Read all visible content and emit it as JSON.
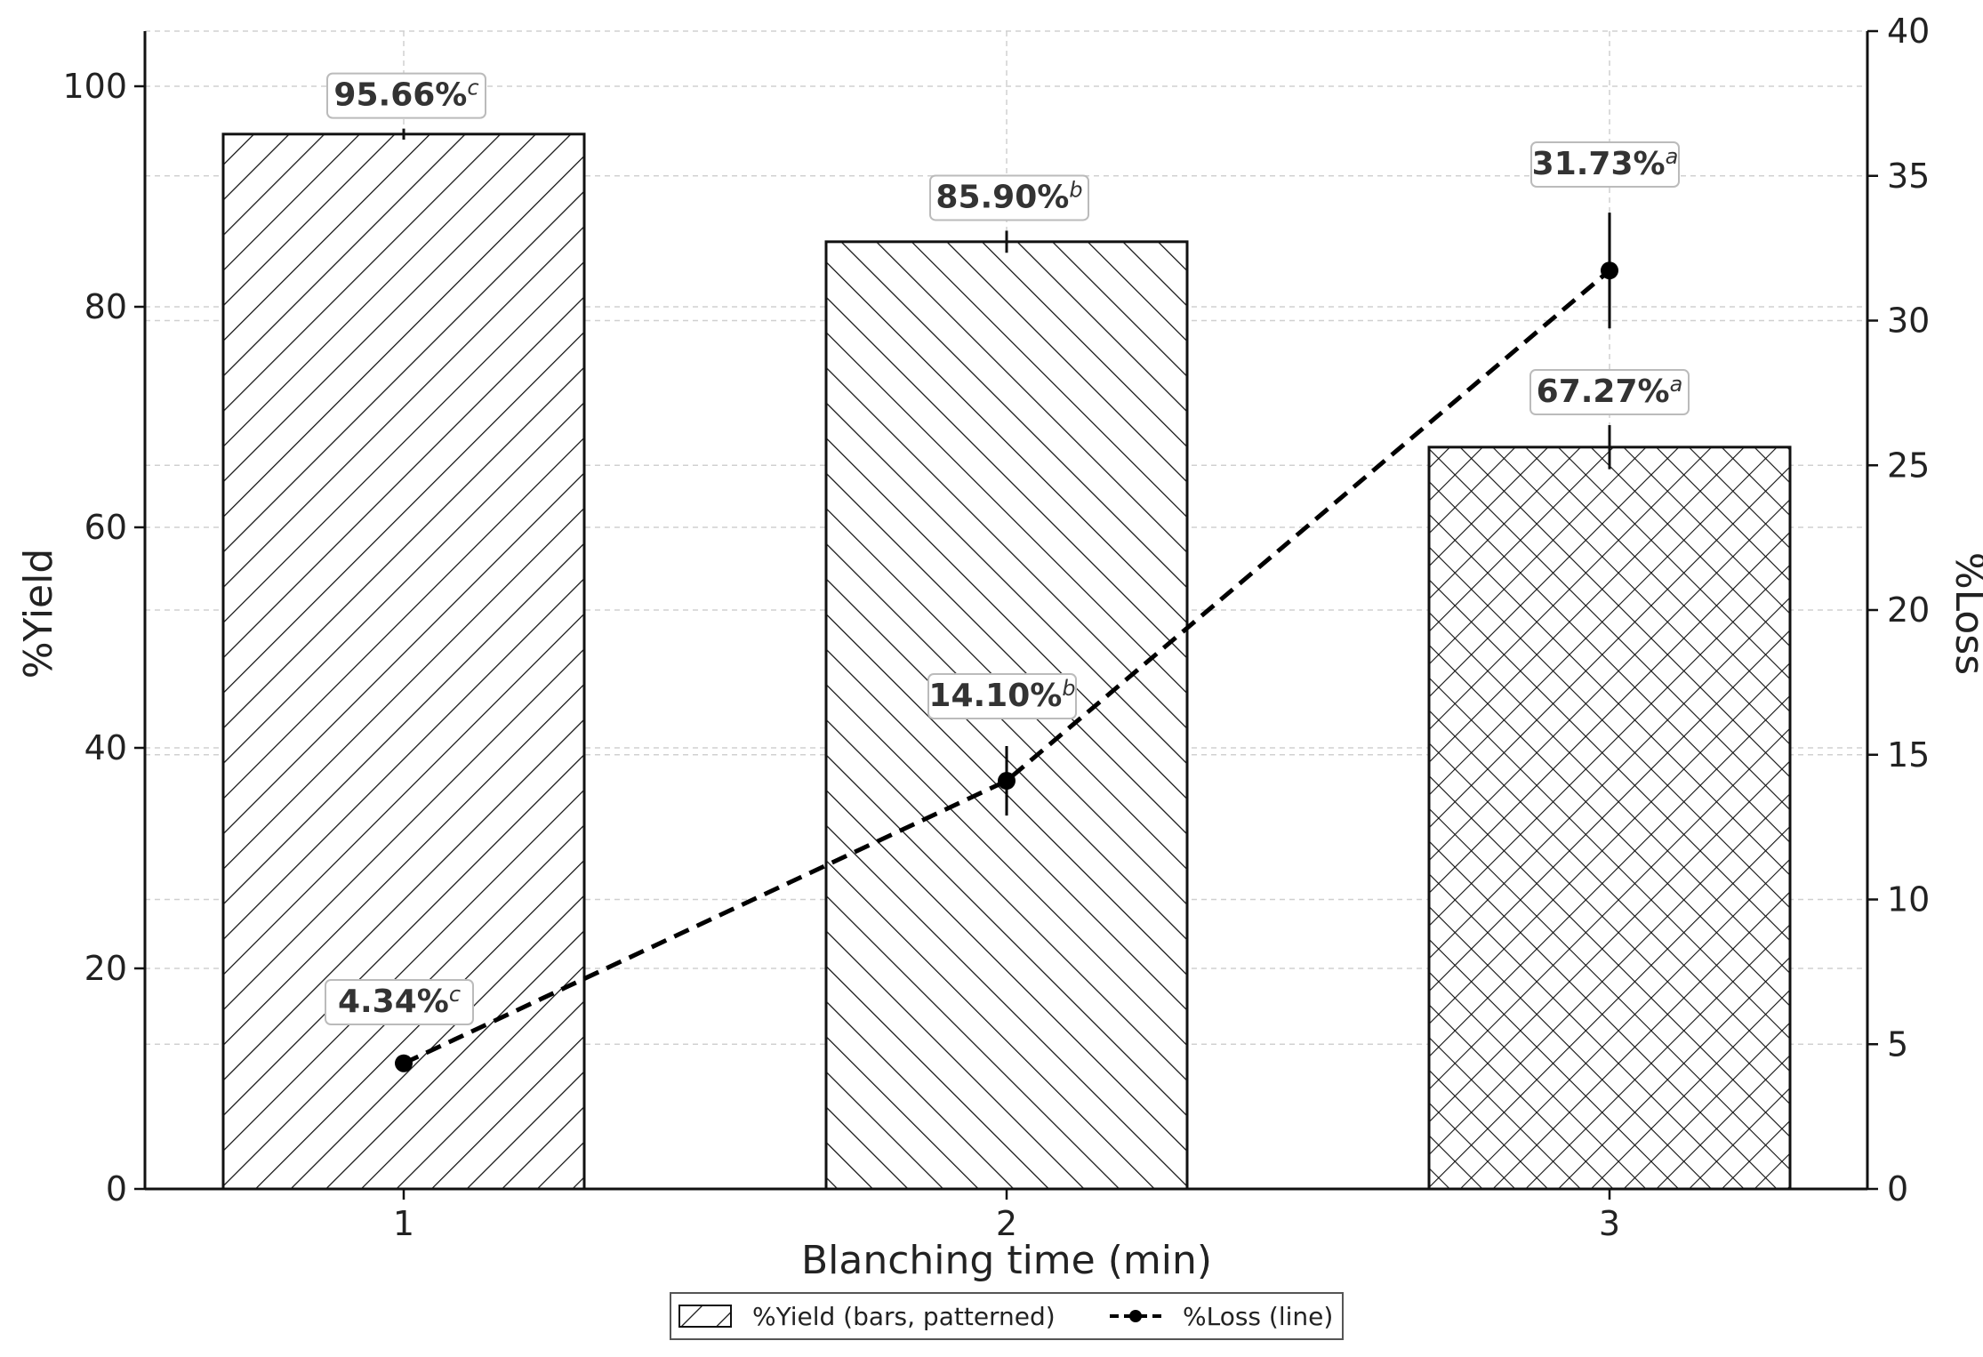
{
  "chart_data": {
    "type": "bar",
    "categories": [
      "1",
      "2",
      "3"
    ],
    "xlabel": "Blanching time (min)",
    "ylabel": "%Yield",
    "y2label": "%Loss",
    "ylim": [
      0,
      105
    ],
    "y2lim": [
      0,
      40
    ],
    "yticks": [
      "0",
      "20",
      "40",
      "60",
      "80",
      "100"
    ],
    "y2ticks": [
      "0",
      "5",
      "10",
      "15",
      "20",
      "25",
      "30",
      "35",
      "40"
    ],
    "grid": true,
    "legend_position": "bottom-center",
    "series": [
      {
        "name": "%Yield (bars, patterned)",
        "type": "bar",
        "axis": "left",
        "values": [
          95.66,
          85.9,
          67.27
        ],
        "errors": [
          0.5,
          1.0,
          2.0
        ],
        "patterns": [
          "diagonal-forward",
          "diagonal-back",
          "crosshatch"
        ],
        "labels": [
          {
            "text": "95.66%",
            "sup": "c"
          },
          {
            "text": "85.90%",
            "sup": "b"
          },
          {
            "text": "67.27%",
            "sup": "a"
          }
        ]
      },
      {
        "name": "%Loss (line)",
        "type": "line",
        "axis": "right",
        "values": [
          4.34,
          14.1,
          31.73
        ],
        "errors": [
          0.3,
          1.2,
          2.0
        ],
        "style": "dashed",
        "labels": [
          {
            "text": "4.34%",
            "sup": "c"
          },
          {
            "text": "14.10%",
            "sup": "b"
          },
          {
            "text": "31.73%",
            "sup": "a"
          }
        ]
      }
    ],
    "colors": {
      "bar_stroke": "#111111",
      "line": "#000000",
      "grid": "#d0d0d0",
      "label_box_border": "#bbbbbb"
    }
  }
}
